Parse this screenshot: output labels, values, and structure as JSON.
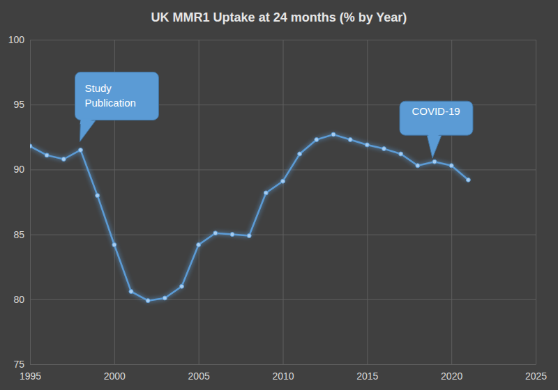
{
  "chart_data": {
    "type": "line",
    "title": "UK MMR1 Uptake at 24 months (% by Year)",
    "x": [
      1995,
      1996,
      1997,
      1998,
      1999,
      2000,
      2001,
      2002,
      2003,
      2004,
      2005,
      2006,
      2007,
      2008,
      2009,
      2010,
      2011,
      2012,
      2013,
      2014,
      2015,
      2016,
      2017,
      2018,
      2019,
      2020,
      2021
    ],
    "values": [
      91.8,
      91.1,
      90.8,
      91.5,
      88.0,
      84.2,
      80.6,
      79.9,
      80.1,
      81.0,
      84.2,
      85.1,
      85.0,
      84.9,
      88.2,
      89.1,
      91.2,
      92.3,
      92.7,
      92.3,
      91.9,
      91.6,
      91.2,
      90.3,
      90.6,
      90.3,
      89.2
    ],
    "color": "#5b9bd5",
    "marker": "circle",
    "grid": true,
    "xlim": [
      1995,
      2025
    ],
    "xticks": [
      1995,
      2000,
      2005,
      2010,
      2015,
      2020,
      2025
    ],
    "ylim": [
      75,
      100
    ],
    "yticks": [
      75,
      80,
      85,
      90,
      95,
      100
    ],
    "annotations": [
      {
        "text": "Study Publication",
        "x": 1998
      },
      {
        "text": "COVID-19",
        "x": 2019
      }
    ]
  }
}
